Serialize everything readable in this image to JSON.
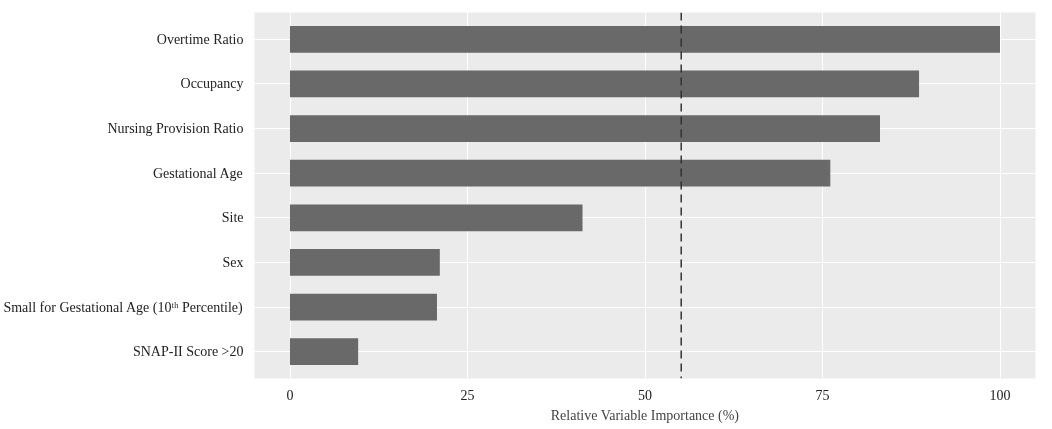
{
  "chart_data": {
    "type": "bar",
    "orientation": "horizontal",
    "xlabel": "Relative Variable Importance (%)",
    "categories": [
      "Overtime Ratio",
      "Occupancy",
      "Nursing Provision Ratio",
      "Gestational Age",
      "Site",
      "Sex",
      "Small for Gestational Age (10ᵗʰ Percentile)",
      "SNAP-II Score >20"
    ],
    "values": [
      100,
      88.6,
      83.1,
      76.1,
      41.2,
      21.1,
      20.7,
      9.6
    ],
    "color": "#696969",
    "xlim": [
      -5,
      105
    ],
    "xticks": [
      0,
      25,
      50,
      75,
      100
    ],
    "grid": true,
    "ref_lines": [
      {
        "axis": "x",
        "value": 55.1,
        "label": null,
        "color": "#333333",
        "line_style": "dashed"
      }
    ]
  }
}
